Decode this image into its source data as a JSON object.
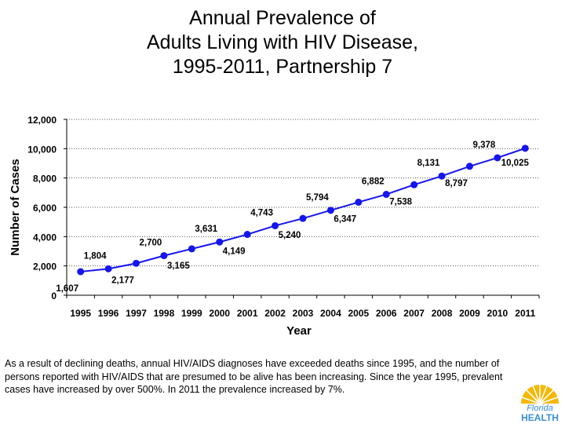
{
  "title": {
    "line1": "Annual Prevalence of",
    "line2": "Adults Living with HIV Disease,",
    "line3": "1995-2011, Partnership 7"
  },
  "chart_data": {
    "type": "line",
    "title": "Annual Prevalence of Adults Living with HIV Disease, 1995-2011, Partnership 7",
    "xlabel": "Year",
    "ylabel": "Number of Cases",
    "categories": [
      "1995",
      "1996",
      "1997",
      "1998",
      "1999",
      "2000",
      "2001",
      "2002",
      "2003",
      "2004",
      "2005",
      "2006",
      "2007",
      "2008",
      "2009",
      "2010",
      "2011"
    ],
    "values": [
      1607,
      1804,
      2177,
      2700,
      3165,
      3631,
      4149,
      4743,
      5240,
      5794,
      6347,
      6882,
      7538,
      8131,
      8797,
      9378,
      10025
    ],
    "data_labels": [
      "1,607",
      "1,804",
      "2,177",
      "2,700",
      "3,165",
      "3,631",
      "4,149",
      "4,743",
      "5,240",
      "5,794",
      "6,347",
      "6,882",
      "7,538",
      "8,131",
      "8,797",
      "9,378",
      "10,025"
    ],
    "ylim": [
      0,
      12000
    ],
    "yticks": [
      0,
      2000,
      4000,
      6000,
      8000,
      10000,
      12000
    ],
    "ytick_labels": [
      "0",
      "2,000",
      "4,000",
      "6,000",
      "8,000",
      "10,000",
      "12,000"
    ],
    "grid": "horizontal dotted",
    "legend": "none",
    "colors": {
      "line": "#1515ee",
      "marker": "#1515ee",
      "grid": "#555555"
    }
  },
  "caption": "As a result of declining deaths, annual HIV/AIDS diagnoses have exceeded deaths since 1995, and the number of persons reported with HIV/AIDS that are presumed to be alive has been increasing.  Since the year 1995, prevalent cases have increased by over 500%.  In 2011 the prevalence increased by 7%.",
  "logo": {
    "line1": "Florida",
    "line2": "HEALTH",
    "colors": {
      "sun": "#f5b800",
      "text": "#3a8fcf"
    }
  }
}
